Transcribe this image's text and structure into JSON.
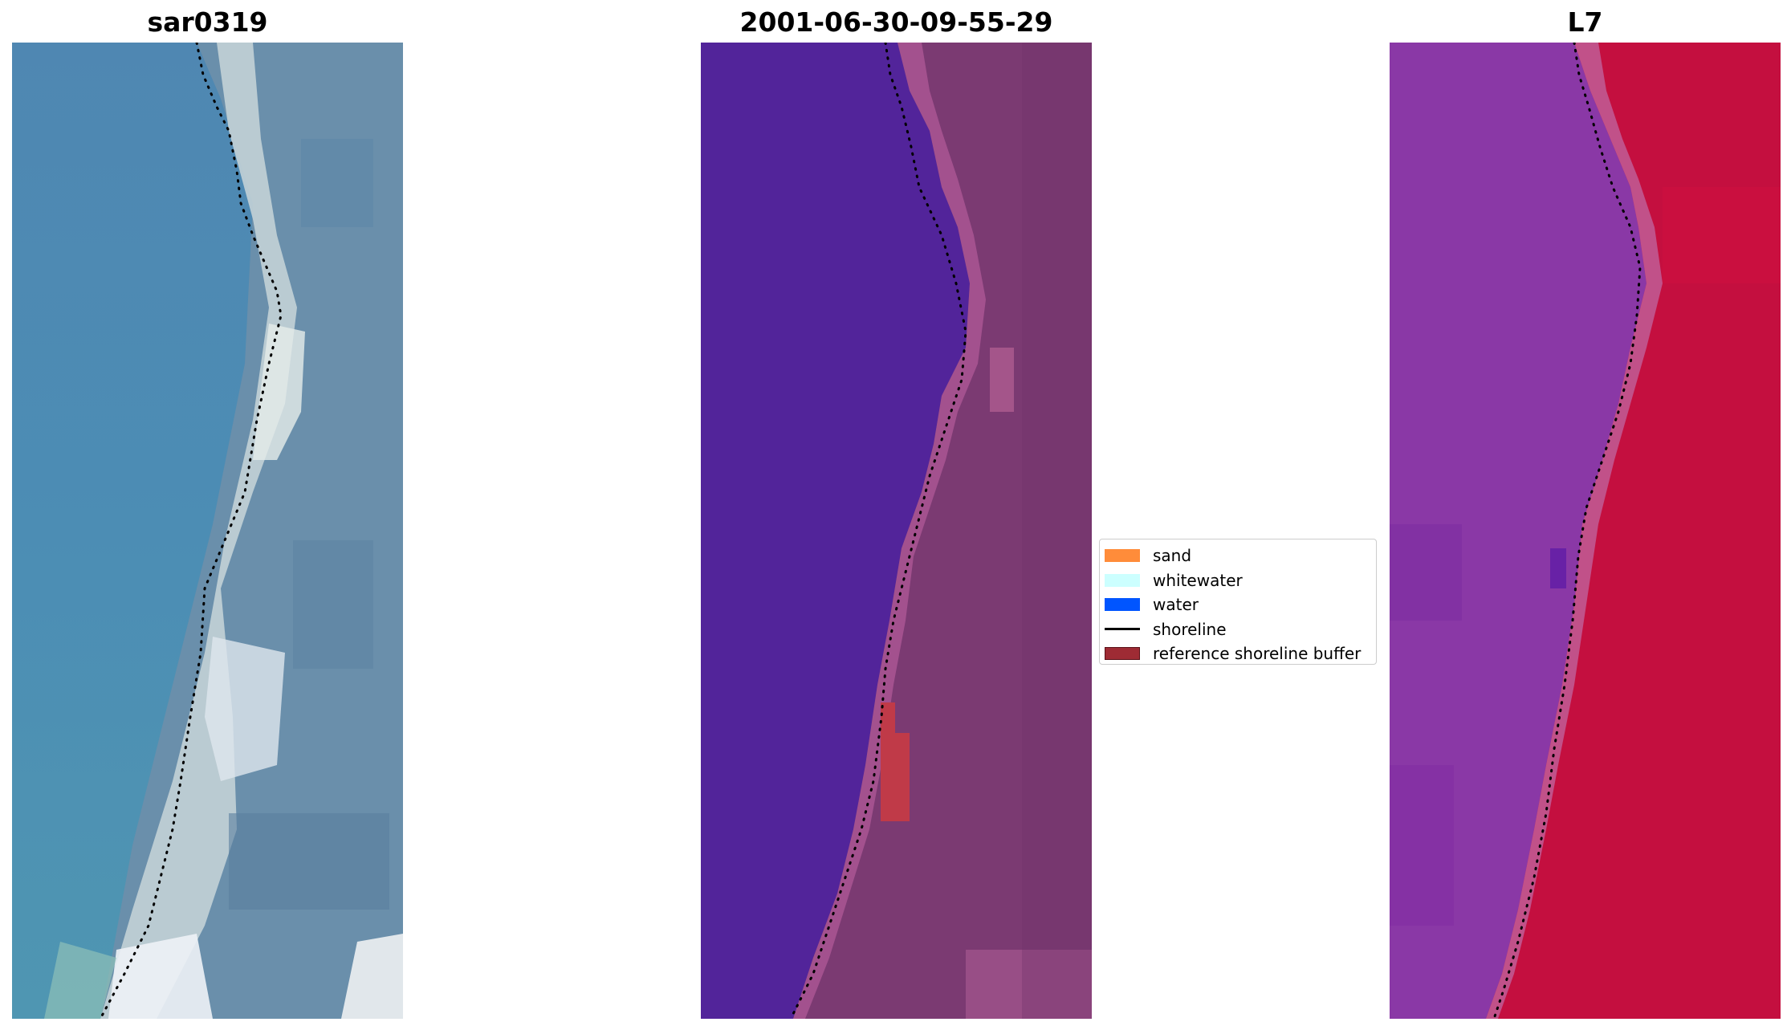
{
  "panels": [
    {
      "title": "sar0319"
    },
    {
      "title": "2001-06-30-09-55-29"
    },
    {
      "title": "L7"
    }
  ],
  "legend": {
    "items": [
      {
        "label": "sand",
        "kind": "patch",
        "color": "#ff8c3a"
      },
      {
        "label": "whitewater",
        "kind": "patch",
        "color": "#ccffff"
      },
      {
        "label": "water",
        "kind": "patch",
        "color": "#0055ff"
      },
      {
        "label": "shoreline",
        "kind": "line",
        "color": "#000000"
      },
      {
        "label": "reference shoreline buffer",
        "kind": "patch",
        "color": "#9e2b34"
      }
    ]
  },
  "colors": {
    "rgb_water": "#4a86b0",
    "rgb_sand": "#c9d6da",
    "class_water": "#52249a",
    "class_land": "#7a3a73",
    "class_buffer": "#c03a48",
    "nir_water": "#8a3ca6",
    "nir_land": "#c4103e",
    "shoreline_dots": "#000000"
  }
}
